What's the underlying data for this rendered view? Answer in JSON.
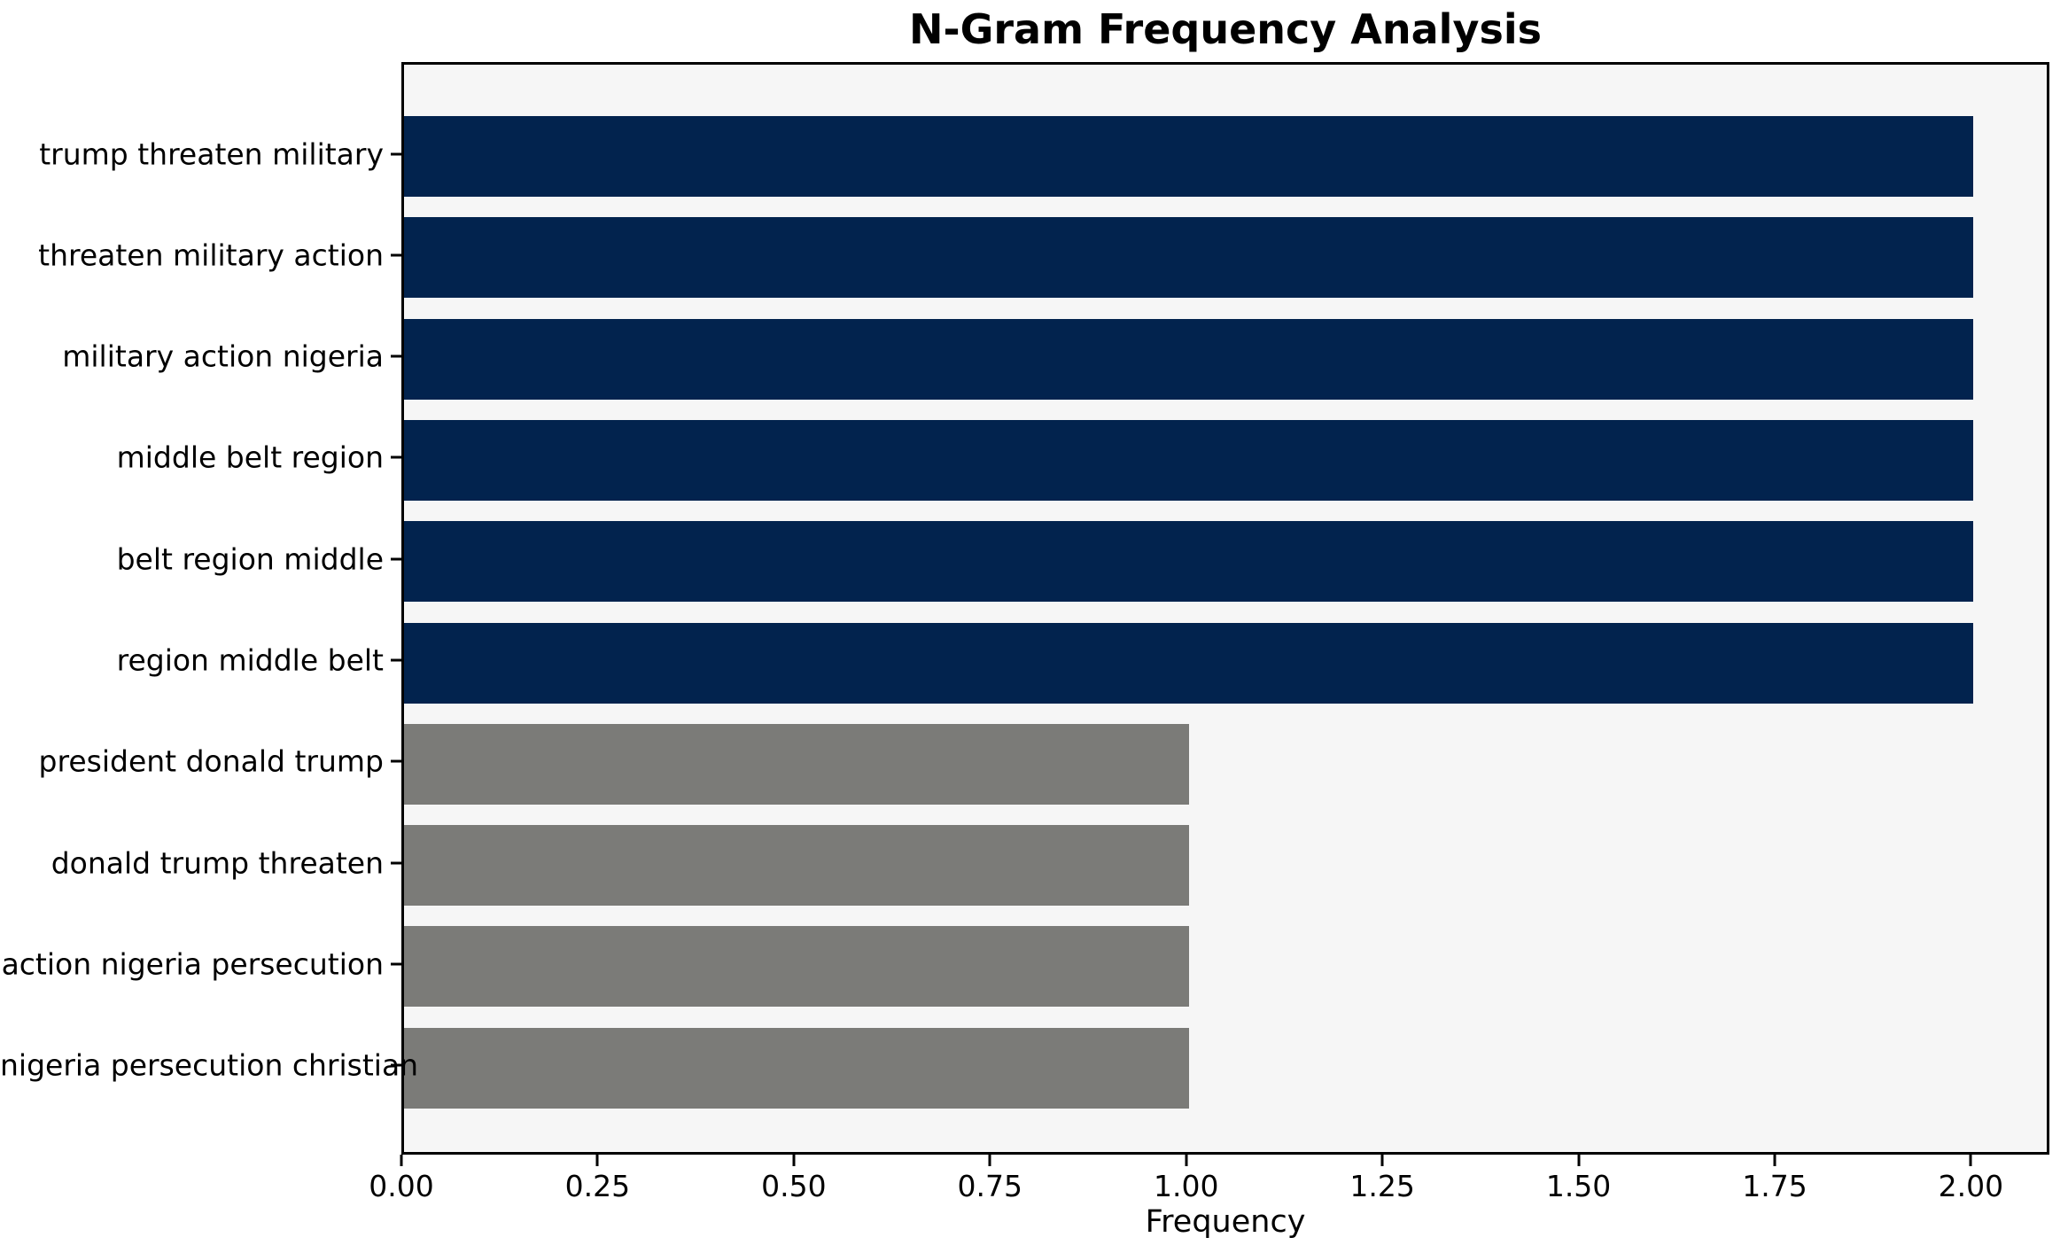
{
  "figure": {
    "background": "#ffffff",
    "plot_background": "#f6f6f6",
    "spine_color": "#000000",
    "text_color": "#000000"
  },
  "chart_data": {
    "type": "bar",
    "orientation": "horizontal",
    "title": "N-Gram Frequency Analysis",
    "xlabel": "Frequency",
    "ylabel": "",
    "categories": [
      "trump threaten military",
      "threaten military action",
      "military action nigeria",
      "middle belt region",
      "belt region middle",
      "region middle belt",
      "president donald trump",
      "donald trump threaten",
      "action nigeria persecution",
      "nigeria persecution christian"
    ],
    "values": [
      2,
      2,
      2,
      2,
      2,
      2,
      1,
      1,
      1,
      1
    ],
    "bar_colors": [
      "#02234e",
      "#02234e",
      "#02234e",
      "#02234e",
      "#02234e",
      "#02234e",
      "#7b7b78",
      "#7b7b78",
      "#7b7b78",
      "#7b7b78"
    ],
    "colors": {
      "frequent_bar": "#02234e",
      "infrequent_bar": "#7b7b78"
    },
    "xlim": [
      0,
      2.1
    ],
    "xticks": [
      0.0,
      0.25,
      0.5,
      0.75,
      1.0,
      1.25,
      1.5,
      1.75,
      2.0
    ],
    "xtick_labels": [
      "0.00",
      "0.25",
      "0.50",
      "0.75",
      "1.00",
      "1.25",
      "1.50",
      "1.75",
      "2.00"
    ],
    "grid": false,
    "legend": null
  }
}
